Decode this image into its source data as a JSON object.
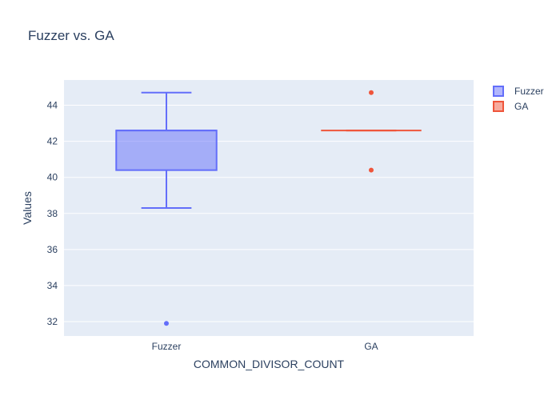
{
  "chart_data": {
    "type": "box",
    "title": "Fuzzer vs. GA",
    "xlabel": "COMMON_DIVISOR_COUNT",
    "ylabel": "Values",
    "categories": [
      "Fuzzer",
      "GA"
    ],
    "ylim": [
      31.2,
      45.4
    ],
    "yticks": [
      32,
      34,
      36,
      38,
      40,
      42,
      44
    ],
    "grid": true,
    "legend_position": "top-right",
    "series": [
      {
        "name": "Fuzzer",
        "category": "Fuzzer",
        "color": "#636efa",
        "min": 38.3,
        "q1": 40.4,
        "median": 42.6,
        "q3": 42.6,
        "max": 44.7,
        "outliers": [
          31.9
        ]
      },
      {
        "name": "GA",
        "category": "GA",
        "color": "#ef553b",
        "min": 42.6,
        "q1": 42.6,
        "median": 42.6,
        "q3": 42.6,
        "max": 42.6,
        "outliers": [
          44.7,
          40.4
        ]
      }
    ]
  }
}
